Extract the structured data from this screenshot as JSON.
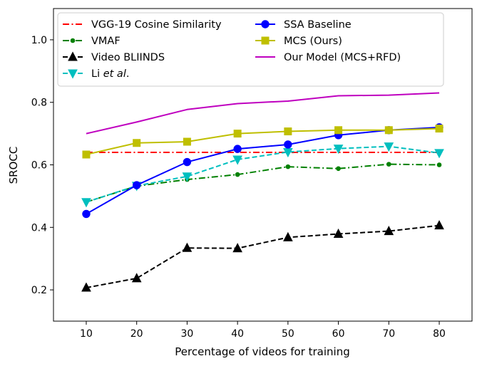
{
  "chart_data": {
    "type": "line",
    "title": "",
    "xlabel": "Percentage of videos for training",
    "ylabel": "SROCC",
    "x": [
      10,
      20,
      30,
      40,
      50,
      60,
      70,
      80
    ],
    "xlim": [
      3.5,
      86.5
    ],
    "ylim": [
      0.1,
      1.1
    ],
    "xticks": [
      "10",
      "20",
      "30",
      "40",
      "50",
      "60",
      "70",
      "80"
    ],
    "yticks": [
      "0.2",
      "0.4",
      "0.6",
      "0.8",
      "1.0"
    ],
    "ytick_values": [
      0.2,
      0.4,
      0.6,
      0.8,
      1.0
    ],
    "grid": false,
    "legend_position": "top-left",
    "series": [
      {
        "name": "VGG-19 Cosine Similarity",
        "color": "#ff0000",
        "dash": "dashdot",
        "marker": "none",
        "values": [
          0.64,
          0.64,
          0.64,
          0.64,
          0.64,
          0.64,
          0.64,
          0.64
        ]
      },
      {
        "name": "VMAF",
        "color": "#008000",
        "dash": "dashdot",
        "marker": "point",
        "values": [
          0.481,
          0.532,
          0.553,
          0.569,
          0.594,
          0.588,
          0.602,
          0.6
        ]
      },
      {
        "name": "Video BLIINDS",
        "color": "#000000",
        "dash": "dashed",
        "marker": "triangle-up",
        "values": [
          0.207,
          0.237,
          0.334,
          0.333,
          0.368,
          0.379,
          0.388,
          0.406
        ]
      },
      {
        "name": "Li et al.",
        "name_prefix": "Li ",
        "name_italic": "et al",
        "name_suffix": ".",
        "color": "#00bfbf",
        "dash": "dashed",
        "marker": "triangle-down",
        "values": [
          0.481,
          0.533,
          0.563,
          0.617,
          0.641,
          0.652,
          0.659,
          0.638
        ]
      },
      {
        "name": "SSA Baseline",
        "color": "#0000ff",
        "dash": "solid",
        "marker": "circle",
        "values": [
          0.443,
          0.535,
          0.609,
          0.651,
          0.665,
          0.695,
          0.711,
          0.72
        ]
      },
      {
        "name": "MCS (Ours)",
        "color": "#bfbf00",
        "dash": "solid",
        "marker": "square",
        "values": [
          0.633,
          0.67,
          0.674,
          0.7,
          0.707,
          0.711,
          0.711,
          0.716
        ]
      },
      {
        "name": "Our Model (MCS+RFD)",
        "color": "#bf00bf",
        "dash": "solid",
        "marker": "none",
        "values": [
          0.7,
          0.737,
          0.777,
          0.796,
          0.804,
          0.821,
          0.823,
          0.83
        ]
      }
    ]
  }
}
